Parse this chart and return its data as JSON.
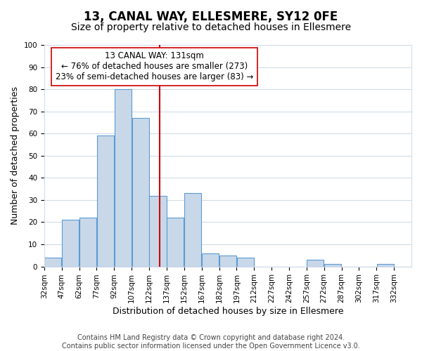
{
  "title": "13, CANAL WAY, ELLESMERE, SY12 0FE",
  "subtitle": "Size of property relative to detached houses in Ellesmere",
  "xlabel": "Distribution of detached houses by size in Ellesmere",
  "ylabel": "Number of detached properties",
  "bin_edges": [
    32,
    47,
    62,
    77,
    92,
    107,
    122,
    137,
    152,
    167,
    182,
    197,
    212,
    227,
    242,
    257,
    272,
    287,
    302,
    317,
    332,
    347
  ],
  "bar_heights": [
    4,
    21,
    22,
    59,
    80,
    67,
    32,
    22,
    33,
    6,
    5,
    4,
    0,
    0,
    0,
    3,
    1,
    0,
    0,
    1,
    0
  ],
  "bar_color": "#c8d8e8",
  "bar_edge_color": "#5b9bd5",
  "property_value": 131,
  "vline_color": "#cc0000",
  "annotation_text": "13 CANAL WAY: 131sqm\n← 76% of detached houses are smaller (273)\n23% of semi-detached houses are larger (83) →",
  "annotation_box_color": "#ffffff",
  "annotation_box_edge_color": "#cc0000",
  "ylim": [
    0,
    100
  ],
  "yticks": [
    0,
    10,
    20,
    30,
    40,
    50,
    60,
    70,
    80,
    90,
    100
  ],
  "tick_labels": [
    "32sqm",
    "47sqm",
    "62sqm",
    "77sqm",
    "92sqm",
    "107sqm",
    "122sqm",
    "137sqm",
    "152sqm",
    "167sqm",
    "182sqm",
    "197sqm",
    "212sqm",
    "227sqm",
    "242sqm",
    "257sqm",
    "272sqm",
    "287sqm",
    "302sqm",
    "317sqm",
    "332sqm"
  ],
  "footer_text": "Contains HM Land Registry data © Crown copyright and database right 2024.\nContains public sector information licensed under the Open Government Licence v3.0.",
  "bg_color": "#ffffff",
  "grid_color": "#d0dce8",
  "title_fontsize": 12,
  "subtitle_fontsize": 10,
  "axis_label_fontsize": 9,
  "tick_fontsize": 7.5,
  "annotation_fontsize": 8.5,
  "footer_fontsize": 7
}
